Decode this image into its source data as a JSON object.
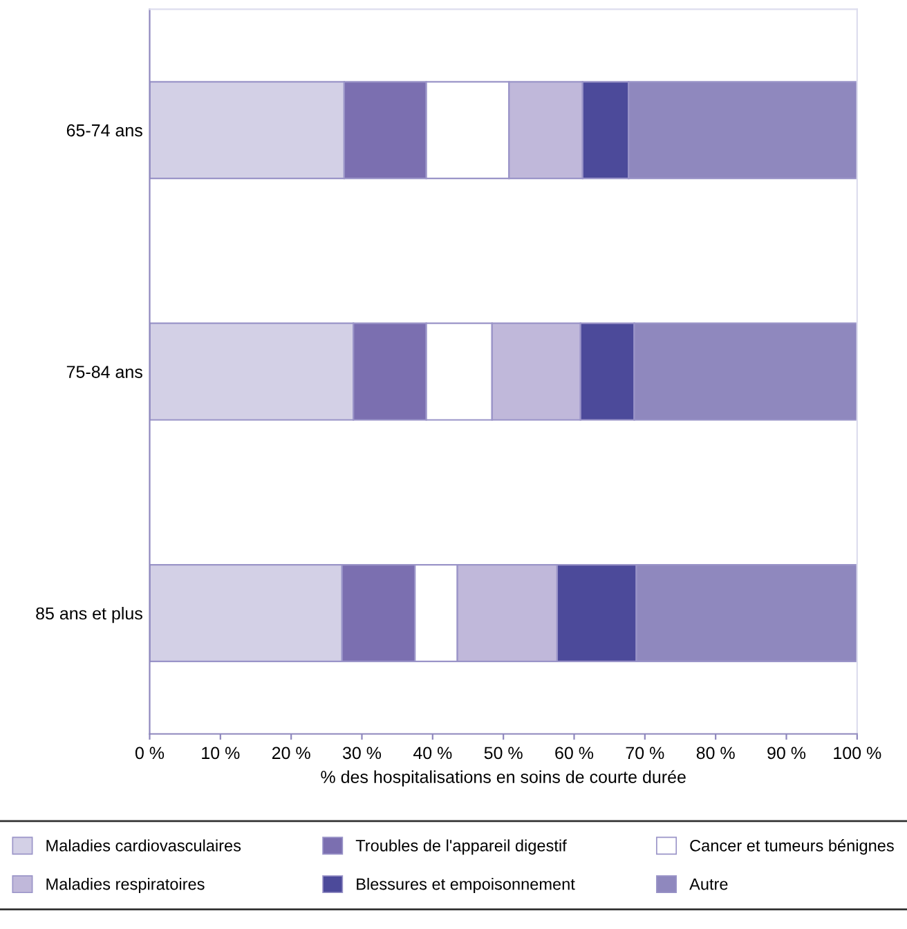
{
  "chart_data": {
    "type": "bar",
    "orientation": "horizontal",
    "stacked": true,
    "xlabel": "% des hospitalisations en soins de courte durée",
    "categories": [
      "65-74 ans",
      "75-84 ans",
      "85 ans et plus"
    ],
    "series": [
      {
        "name": "Maladies cardiovasculaires",
        "color": "#d3d0e6",
        "values": [
          27.5,
          28.8,
          27.2
        ]
      },
      {
        "name": "Troubles de l'appareil digestif",
        "color": "#7b6fb0",
        "values": [
          11.6,
          10.3,
          10.3
        ]
      },
      {
        "name": "Cancer et tumeurs bénignes",
        "color": "#ffffff",
        "values": [
          11.7,
          9.3,
          6.0
        ]
      },
      {
        "name": "Maladies respiratoires",
        "color": "#c0b8da",
        "values": [
          10.4,
          12.5,
          14.1
        ]
      },
      {
        "name": "Blessures et empoisonnement",
        "color": "#4c4a9a",
        "values": [
          6.5,
          7.6,
          11.2
        ]
      },
      {
        "name": "Autre",
        "color": "#8f88be",
        "values": [
          32.3,
          31.5,
          31.2
        ]
      }
    ],
    "xlim": [
      0,
      100
    ],
    "xticks": [
      {
        "value": 0,
        "label": "0 %"
      },
      {
        "value": 10,
        "label": "10 %"
      },
      {
        "value": 20,
        "label": "20 %"
      },
      {
        "value": 30,
        "label": "30 %"
      },
      {
        "value": 40,
        "label": "40 %"
      },
      {
        "value": 50,
        "label": "50 %"
      },
      {
        "value": 60,
        "label": "60 %"
      },
      {
        "value": 70,
        "label": "70 %"
      },
      {
        "value": 80,
        "label": "80 %"
      },
      {
        "value": 90,
        "label": "90 %"
      },
      {
        "value": 100,
        "label": "100 %"
      }
    ],
    "legend": "bottom",
    "grid": false
  }
}
